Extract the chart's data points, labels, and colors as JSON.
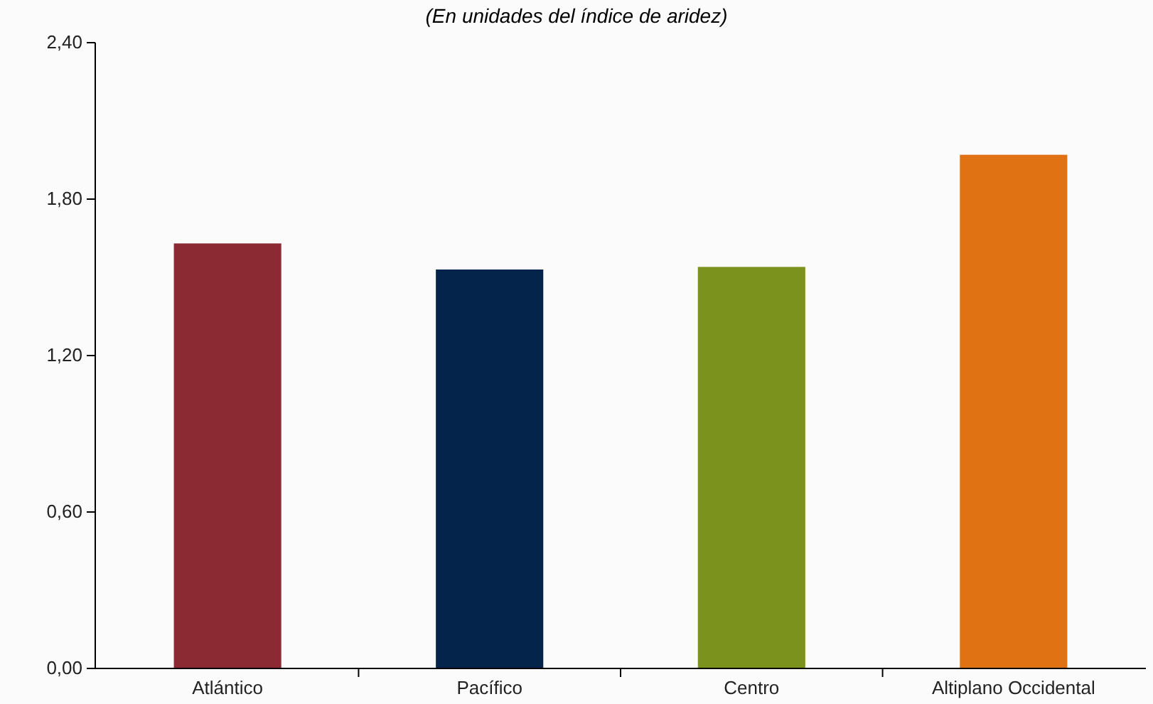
{
  "chart_data": {
    "type": "bar",
    "subtitle": "(En unidades del índice de aridez)",
    "categories": [
      "Atlántico",
      "Pacífico",
      "Centro",
      "Altiplano Occidental"
    ],
    "values": [
      1.63,
      1.53,
      1.54,
      1.97
    ],
    "colors": [
      "#8b2a32",
      "#04244c",
      "#7b921c",
      "#e07214"
    ],
    "ylim": [
      0,
      2.4
    ],
    "yticks": [
      {
        "value": 0,
        "label": "0,00"
      },
      {
        "value": 0.6,
        "label": "0,60"
      },
      {
        "value": 1.2,
        "label": "1,20"
      },
      {
        "value": 1.8,
        "label": "1,80"
      },
      {
        "value": 2.4,
        "label": "2,40"
      }
    ],
    "grid": false
  }
}
